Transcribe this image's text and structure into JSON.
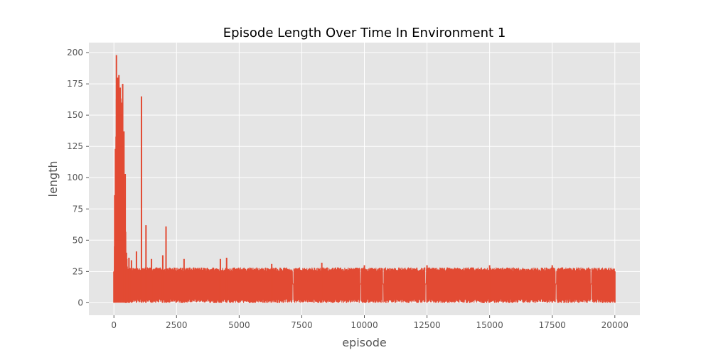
{
  "chart_data": {
    "type": "line",
    "title": "Episode Length Over Time In Environment 1",
    "xlabel": "episode",
    "ylabel": "length",
    "xlim": [
      -1000,
      21000
    ],
    "ylim": [
      -10,
      208
    ],
    "xticks": [
      0,
      2500,
      5000,
      7500,
      10000,
      12500,
      15000,
      17500,
      20000
    ],
    "yticks": [
      0,
      25,
      50,
      75,
      100,
      125,
      150,
      175,
      200
    ],
    "grid": true,
    "legend": "none",
    "colors": {
      "series": "#e24a33",
      "plot_background": "#e5e5e5",
      "grid": "#ffffff",
      "text": "#555555"
    },
    "series": [
      {
        "name": "",
        "x_range": [
          0,
          20000
        ],
        "summary_points": [
          {
            "episode": 0,
            "length": 25
          },
          {
            "episode": 30,
            "length": 86
          },
          {
            "episode": 60,
            "length": 123
          },
          {
            "episode": 100,
            "length": 198
          },
          {
            "episode": 150,
            "length": 180
          },
          {
            "episode": 200,
            "length": 182
          },
          {
            "episode": 250,
            "length": 172
          },
          {
            "episode": 300,
            "length": 160
          },
          {
            "episode": 350,
            "length": 175
          },
          {
            "episode": 400,
            "length": 137
          },
          {
            "episode": 450,
            "length": 103
          },
          {
            "episode": 500,
            "length": 40
          },
          {
            "episode": 600,
            "length": 36
          },
          {
            "episode": 700,
            "length": 34
          },
          {
            "episode": 900,
            "length": 41
          },
          {
            "episode": 1100,
            "length": 165
          },
          {
            "episode": 1280,
            "length": 62
          },
          {
            "episode": 1500,
            "length": 35
          },
          {
            "episode": 1950,
            "length": 38
          },
          {
            "episode": 2080,
            "length": 61
          },
          {
            "episode": 2800,
            "length": 35
          },
          {
            "episode": 4250,
            "length": 35
          },
          {
            "episode": 4500,
            "length": 36
          },
          {
            "episode": 6300,
            "length": 31
          },
          {
            "episode": 8300,
            "length": 32
          },
          {
            "episode": 10000,
            "length": 30
          },
          {
            "episode": 12500,
            "length": 30
          },
          {
            "episode": 15000,
            "length": 30
          },
          {
            "episode": 17500,
            "length": 30
          },
          {
            "episode": 20000,
            "length": 25
          }
        ],
        "steady_state_band": [
          0,
          27
        ],
        "typical_gaps": [
          7150,
          9850,
          10750,
          12450,
          17650,
          19050
        ]
      }
    ]
  }
}
